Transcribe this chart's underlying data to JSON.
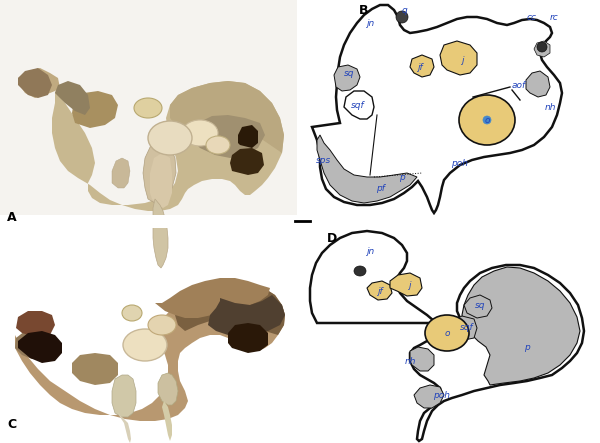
{
  "background_color": "#ffffff",
  "panel_A": {
    "photo_bg": "#e8e0d0",
    "skull_color": "#c8b898",
    "horn_color": "#d4c8a8",
    "dark_color": "#806040",
    "white_oval": "#f0e8d0",
    "dark_opening": "#2a1a0a"
  },
  "panel_B": {
    "outline_color": "#111111",
    "gray_fill": "#b8b8b8",
    "yellow_fill": "#e8ca78",
    "dark_fill": "#404040",
    "label_color": "#2244bb",
    "label_fontsize": 6.5
  },
  "panel_C": {
    "photo_bg": "#ece8e0",
    "skull_color": "#b89870",
    "dark_region": "#5a4530",
    "horn_color": "#c8b890",
    "white_oval": "#eadfc0"
  },
  "panel_D": {
    "outline_color": "#111111",
    "gray_fill": "#b8b8b8",
    "yellow_fill": "#e8ca78",
    "label_color": "#2244bb",
    "label_fontsize": 6.5
  }
}
